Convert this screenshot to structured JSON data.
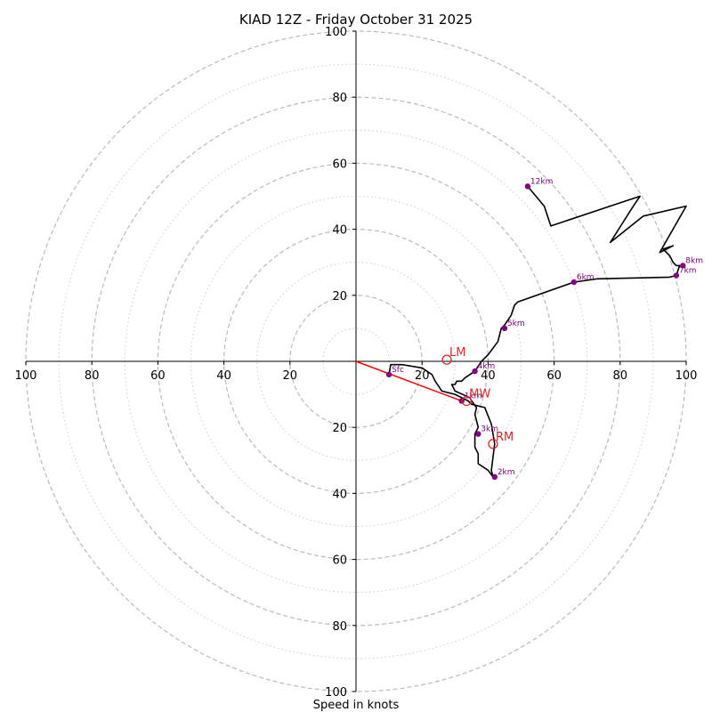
{
  "chart_data": {
    "type": "line",
    "title": "KIAD 12Z - Friday October 31 2025",
    "xlabel": "Speed in knots",
    "ylabel": "",
    "xlim": [
      -100,
      100
    ],
    "ylim": [
      -100,
      100
    ],
    "grid": true,
    "x_tick_labels": [
      "100",
      "80",
      "60",
      "40",
      "20",
      "20",
      "40",
      "60",
      "80",
      "100"
    ],
    "x_tick_values": [
      -100,
      -80,
      -60,
      -40,
      -20,
      20,
      40,
      60,
      80,
      100
    ],
    "y_tick_labels": [
      "100",
      "80",
      "60",
      "40",
      "20",
      "20",
      "40",
      "60",
      "80",
      "100"
    ],
    "y_tick_values": [
      100,
      80,
      60,
      40,
      20,
      -20,
      -40,
      -60,
      -80,
      -100
    ],
    "rings_major": [
      20,
      40,
      60,
      80,
      100
    ],
    "rings_minor": [
      10,
      30,
      50,
      70,
      90
    ],
    "series": [
      {
        "name": "hodograph",
        "color": "#000000",
        "x": [
          10,
          10.5,
          14,
          20,
          23,
          24,
          26,
          30,
          32,
          34,
          35,
          37,
          39,
          41,
          42,
          41,
          41.5,
          40,
          37,
          37,
          36,
          36,
          37,
          36,
          36.5,
          35,
          34.5,
          30,
          29,
          30,
          30.5,
          32,
          33,
          36,
          38,
          40,
          43,
          44,
          45,
          47,
          48,
          49,
          66,
          73,
          95,
          97,
          98,
          97,
          96,
          95,
          93,
          96,
          92,
          100,
          87,
          77,
          84,
          86,
          80,
          59,
          57,
          52
        ],
        "y": [
          -4,
          -1,
          -1,
          -2,
          -4,
          -6,
          -9,
          -10,
          -11,
          -12,
          -13,
          -13.5,
          -14,
          -19,
          -25,
          -33,
          -35,
          -33,
          -31,
          -28,
          -26,
          -22,
          -20,
          -16,
          -14,
          -12,
          -11,
          -9,
          -7,
          -7,
          -6,
          -6,
          -5,
          -3,
          0,
          2,
          6,
          10,
          11,
          14,
          17,
          18,
          24,
          25,
          25.5,
          26,
          29,
          29,
          30,
          32,
          34,
          35,
          33,
          47,
          44,
          36,
          47,
          50,
          48,
          41,
          47,
          53
        ]
      },
      {
        "name": "storm-motion",
        "color": "#ff0000",
        "x": [
          0,
          32
        ],
        "y": [
          0,
          -12
        ]
      }
    ],
    "height_markers": [
      {
        "label": "Sfc",
        "x": 10,
        "y": -4
      },
      {
        "label": "1km",
        "x": 32,
        "y": -12
      },
      {
        "label": "2km",
        "x": 42,
        "y": -35
      },
      {
        "label": "3km",
        "x": 37,
        "y": -22
      },
      {
        "label": "4km",
        "x": 36,
        "y": -3
      },
      {
        "label": "5km",
        "x": 45,
        "y": 10
      },
      {
        "label": "6km",
        "x": 66,
        "y": 24
      },
      {
        "label": "7km",
        "x": 97,
        "y": 26
      },
      {
        "label": "8km",
        "x": 99,
        "y": 29
      },
      {
        "label": "12km",
        "x": 52,
        "y": 53
      }
    ],
    "storm_markers": [
      {
        "label": "LM",
        "x": 27.5,
        "y": 0.5
      },
      {
        "label": "MW",
        "x": 33.5,
        "y": -12
      },
      {
        "label": "RM",
        "x": 41.5,
        "y": -25
      }
    ],
    "colors": {
      "hodograph": "#000000",
      "storm_motion": "#ff0000",
      "height_marker": "#800080",
      "storm_marker": "#d62728",
      "grid": "#bbbbbb",
      "axis": "#000000"
    }
  }
}
